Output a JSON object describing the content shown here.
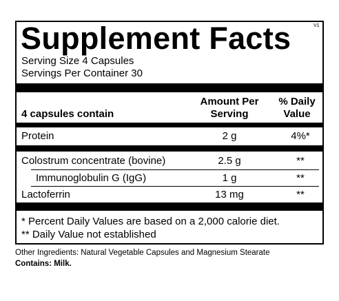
{
  "title": "Supplement Facts",
  "version": "V1",
  "serving": [
    "Serving Size 4 Capsules",
    "Servings Per Container  30"
  ],
  "header": {
    "label": "4 capsules contain",
    "amount": "Amount Per Serving",
    "daily": "% Daily Value"
  },
  "rows": [
    [
      "Protein",
      "2 g",
      "4%*"
    ],
    [
      "Colostrum concentrate (bovine)",
      "2.5 g",
      "**"
    ],
    [
      "Immunoglobulin G (IgG)",
      "1 g",
      "**"
    ],
    [
      "Lactoferrin",
      "13 mg",
      "**"
    ]
  ],
  "footnotes": [
    "* Percent Daily Values are based on a 2,000 calorie diet.",
    "** Daily Value not established"
  ],
  "other_ingredients": "Other Ingredients: Natural Vegetable Capsules and Magnesium Stearate",
  "contains": "Contains: Milk."
}
